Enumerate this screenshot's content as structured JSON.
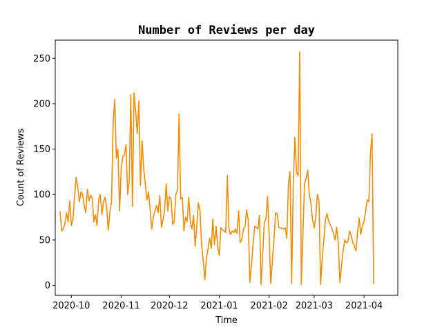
{
  "chart_data": {
    "type": "line",
    "title": "Number of Reviews per day",
    "xlabel": "Time",
    "ylabel": "Count of Reviews",
    "x_range": [
      "2020-09-21",
      "2021-04-22"
    ],
    "ylim": [
      -11,
      270
    ],
    "grid": false,
    "legend": "none",
    "xticks": [
      {
        "date": "2020-10-01",
        "label": "2020-10"
      },
      {
        "date": "2020-11-01",
        "label": "2020-11"
      },
      {
        "date": "2020-12-01",
        "label": "2020-12"
      },
      {
        "date": "2021-01-01",
        "label": "2021-01"
      },
      {
        "date": "2021-02-01",
        "label": "2021-02"
      },
      {
        "date": "2021-03-01",
        "label": "2021-03"
      },
      {
        "date": "2021-04-01",
        "label": "2021-04"
      }
    ],
    "yticks": [
      0,
      50,
      100,
      150,
      200,
      250
    ],
    "series": [
      {
        "color": "#f28c00",
        "points": [
          [
            "2020-09-24",
            81
          ],
          [
            "2020-09-25",
            60
          ],
          [
            "2020-09-26",
            62
          ],
          [
            "2020-09-27",
            68
          ],
          [
            "2020-09-28",
            80
          ],
          [
            "2020-09-29",
            70
          ],
          [
            "2020-09-30",
            93
          ],
          [
            "2020-10-01",
            66
          ],
          [
            "2020-10-02",
            73
          ],
          [
            "2020-10-03",
            97
          ],
          [
            "2020-10-04",
            119
          ],
          [
            "2020-10-05",
            108
          ],
          [
            "2020-10-06",
            92
          ],
          [
            "2020-10-07",
            103
          ],
          [
            "2020-10-08",
            100
          ],
          [
            "2020-10-09",
            88
          ],
          [
            "2020-10-10",
            80
          ],
          [
            "2020-10-11",
            106
          ],
          [
            "2020-10-12",
            93
          ],
          [
            "2020-10-13",
            99
          ],
          [
            "2020-10-14",
            96
          ],
          [
            "2020-10-15",
            70
          ],
          [
            "2020-10-16",
            78
          ],
          [
            "2020-10-17",
            66
          ],
          [
            "2020-10-18",
            95
          ],
          [
            "2020-10-19",
            100
          ],
          [
            "2020-10-20",
            78
          ],
          [
            "2020-10-21",
            92
          ],
          [
            "2020-10-22",
            97
          ],
          [
            "2020-10-23",
            85
          ],
          [
            "2020-10-24",
            61
          ],
          [
            "2020-10-25",
            82
          ],
          [
            "2020-10-26",
            92
          ],
          [
            "2020-10-27",
            178
          ],
          [
            "2020-10-28",
            205
          ],
          [
            "2020-10-29",
            140
          ],
          [
            "2020-10-30",
            150
          ],
          [
            "2020-10-31",
            82
          ],
          [
            "2020-11-01",
            128
          ],
          [
            "2020-11-02",
            142
          ],
          [
            "2020-11-03",
            143
          ],
          [
            "2020-11-04",
            155
          ],
          [
            "2020-11-05",
            100
          ],
          [
            "2020-11-06",
            114
          ],
          [
            "2020-11-07",
            210
          ],
          [
            "2020-11-08",
            87
          ],
          [
            "2020-11-09",
            212
          ],
          [
            "2020-11-10",
            192
          ],
          [
            "2020-11-11",
            167
          ],
          [
            "2020-11-12",
            203
          ],
          [
            "2020-11-13",
            110
          ],
          [
            "2020-11-14",
            159
          ],
          [
            "2020-11-15",
            129
          ],
          [
            "2020-11-16",
            112
          ],
          [
            "2020-11-17",
            94
          ],
          [
            "2020-11-18",
            103
          ],
          [
            "2020-11-19",
            83
          ],
          [
            "2020-11-20",
            62
          ],
          [
            "2020-11-21",
            75
          ],
          [
            "2020-11-22",
            82
          ],
          [
            "2020-11-23",
            88
          ],
          [
            "2020-11-24",
            80
          ],
          [
            "2020-11-25",
            99
          ],
          [
            "2020-11-26",
            64
          ],
          [
            "2020-11-27",
            72
          ],
          [
            "2020-11-28",
            82
          ],
          [
            "2020-11-29",
            112
          ],
          [
            "2020-11-30",
            82
          ],
          [
            "2020-12-01",
            98
          ],
          [
            "2020-12-02",
            95
          ],
          [
            "2020-12-03",
            67
          ],
          [
            "2020-12-04",
            70
          ],
          [
            "2020-12-05",
            100
          ],
          [
            "2020-12-06",
            105
          ],
          [
            "2020-12-07",
            189
          ],
          [
            "2020-12-08",
            95
          ],
          [
            "2020-12-09",
            97
          ],
          [
            "2020-12-10",
            60
          ],
          [
            "2020-12-11",
            75
          ],
          [
            "2020-12-12",
            70
          ],
          [
            "2020-12-13",
            97
          ],
          [
            "2020-12-14",
            70
          ],
          [
            "2020-12-15",
            62
          ],
          [
            "2020-12-16",
            77
          ],
          [
            "2020-12-17",
            43
          ],
          [
            "2020-12-18",
            65
          ],
          [
            "2020-12-19",
            91
          ],
          [
            "2020-12-20",
            82
          ],
          [
            "2020-12-21",
            45
          ],
          [
            "2020-12-22",
            28
          ],
          [
            "2020-12-23",
            6
          ],
          [
            "2020-12-24",
            30
          ],
          [
            "2020-12-25",
            40
          ],
          [
            "2020-12-26",
            52
          ],
          [
            "2020-12-27",
            41
          ],
          [
            "2020-12-28",
            73
          ],
          [
            "2020-12-29",
            45
          ],
          [
            "2020-12-30",
            65
          ],
          [
            "2020-12-31",
            42
          ],
          [
            "2021-01-01",
            33
          ],
          [
            "2021-01-02",
            64
          ],
          [
            "2021-01-03",
            61
          ],
          [
            "2021-01-04",
            60
          ],
          [
            "2021-01-05",
            58
          ],
          [
            "2021-01-06",
            121
          ],
          [
            "2021-01-07",
            62
          ],
          [
            "2021-01-08",
            56
          ],
          [
            "2021-01-09",
            60
          ],
          [
            "2021-01-10",
            58
          ],
          [
            "2021-01-11",
            62
          ],
          [
            "2021-01-12",
            57
          ],
          [
            "2021-01-13",
            82
          ],
          [
            "2021-01-14",
            47
          ],
          [
            "2021-01-15",
            50
          ],
          [
            "2021-01-16",
            62
          ],
          [
            "2021-01-17",
            65
          ],
          [
            "2021-01-18",
            83
          ],
          [
            "2021-01-19",
            72
          ],
          [
            "2021-01-20",
            3
          ],
          [
            "2021-01-21",
            23
          ],
          [
            "2021-01-22",
            45
          ],
          [
            "2021-01-23",
            65
          ],
          [
            "2021-01-24",
            64
          ],
          [
            "2021-01-25",
            62
          ],
          [
            "2021-01-26",
            77
          ],
          [
            "2021-01-27",
            1
          ],
          [
            "2021-01-28",
            35
          ],
          [
            "2021-01-29",
            70
          ],
          [
            "2021-01-30",
            73
          ],
          [
            "2021-01-31",
            98
          ],
          [
            "2021-02-01",
            56
          ],
          [
            "2021-02-02",
            2
          ],
          [
            "2021-02-03",
            27
          ],
          [
            "2021-02-04",
            50
          ],
          [
            "2021-02-05",
            80
          ],
          [
            "2021-02-06",
            79
          ],
          [
            "2021-02-07",
            64
          ],
          [
            "2021-02-08",
            63
          ],
          [
            "2021-02-09",
            63
          ],
          [
            "2021-02-10",
            62
          ],
          [
            "2021-02-11",
            63
          ],
          [
            "2021-02-12",
            52
          ],
          [
            "2021-02-13",
            113
          ],
          [
            "2021-02-14",
            125
          ],
          [
            "2021-02-15",
            2
          ],
          [
            "2021-02-16",
            110
          ],
          [
            "2021-02-17",
            163
          ],
          [
            "2021-02-18",
            125
          ],
          [
            "2021-02-19",
            121
          ],
          [
            "2021-02-20",
            257
          ],
          [
            "2021-02-21",
            1
          ],
          [
            "2021-02-22",
            55
          ],
          [
            "2021-02-23",
            112
          ],
          [
            "2021-02-24",
            118
          ],
          [
            "2021-02-25",
            127
          ],
          [
            "2021-02-26",
            100
          ],
          [
            "2021-02-27",
            90
          ],
          [
            "2021-02-28",
            72
          ],
          [
            "2021-03-01",
            63
          ],
          [
            "2021-03-02",
            76
          ],
          [
            "2021-03-03",
            100
          ],
          [
            "2021-03-04",
            93
          ],
          [
            "2021-03-05",
            1
          ],
          [
            "2021-03-06",
            30
          ],
          [
            "2021-03-07",
            50
          ],
          [
            "2021-03-08",
            72
          ],
          [
            "2021-03-09",
            79
          ],
          [
            "2021-03-10",
            71
          ],
          [
            "2021-03-11",
            67
          ],
          [
            "2021-03-12",
            63
          ],
          [
            "2021-03-13",
            57
          ],
          [
            "2021-03-14",
            50
          ],
          [
            "2021-03-15",
            64
          ],
          [
            "2021-03-16",
            46
          ],
          [
            "2021-03-17",
            3
          ],
          [
            "2021-03-18",
            22
          ],
          [
            "2021-03-19",
            38
          ],
          [
            "2021-03-20",
            50
          ],
          [
            "2021-03-21",
            47
          ],
          [
            "2021-03-22",
            48
          ],
          [
            "2021-03-23",
            60
          ],
          [
            "2021-03-24",
            55
          ],
          [
            "2021-03-25",
            48
          ],
          [
            "2021-03-26",
            43
          ],
          [
            "2021-03-27",
            38
          ],
          [
            "2021-03-28",
            60
          ],
          [
            "2021-03-29",
            74
          ],
          [
            "2021-03-30",
            56
          ],
          [
            "2021-03-31",
            66
          ],
          [
            "2021-04-01",
            70
          ],
          [
            "2021-04-02",
            82
          ],
          [
            "2021-04-03",
            94
          ],
          [
            "2021-04-04",
            92
          ],
          [
            "2021-04-05",
            145
          ],
          [
            "2021-04-06",
            167
          ],
          [
            "2021-04-07",
            2
          ]
        ]
      }
    ]
  }
}
